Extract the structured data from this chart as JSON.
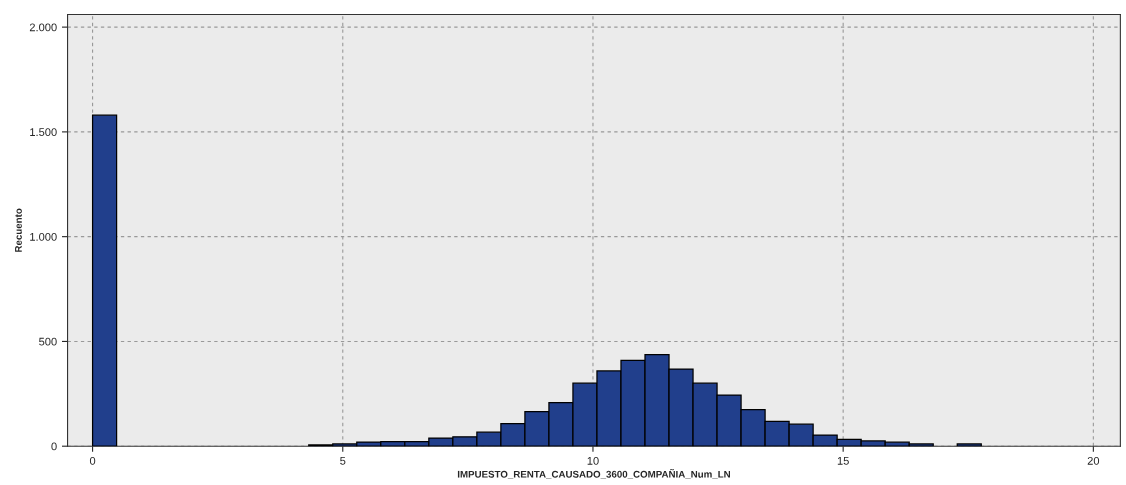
{
  "chart_data": {
    "type": "histogram",
    "xlabel": "IMPUESTO_RENTA_CAUSADO_3600_COMPAÑIA_Num_LN",
    "ylabel": "Recuento",
    "bins": [
      0,
      0.48,
      0.96,
      1.44,
      1.92,
      2.4,
      2.88,
      3.36,
      3.84,
      4.32,
      4.8,
      5.28,
      5.76,
      6.24,
      6.72,
      7.2,
      7.68,
      8.16,
      8.64,
      9.12,
      9.6,
      10.08,
      10.56,
      11.04,
      11.52,
      12.0,
      12.48,
      12.96,
      13.44,
      13.92,
      14.4,
      14.88,
      15.36,
      15.84,
      16.32,
      16.8,
      17.28,
      17.76
    ],
    "values": [
      1580,
      0,
      0,
      0,
      0,
      0,
      0,
      0,
      0,
      6,
      11,
      20,
      22,
      22,
      39,
      45,
      67,
      108,
      165,
      208,
      301,
      359,
      409,
      437,
      368,
      301,
      244,
      174,
      119,
      105,
      53,
      33,
      25,
      19,
      11,
      0,
      11
    ],
    "color": "#213f8c",
    "xlim": [
      -0.5,
      20.54
    ],
    "xticks": [
      0,
      5,
      10,
      15,
      20
    ],
    "ylim": [
      0,
      2060
    ],
    "yticks": [
      0,
      500,
      {
        "value": 1000,
        "label": "1.000"
      },
      {
        "value": 1500,
        "label": "1.500"
      },
      {
        "value": 2000,
        "label": "2.000"
      }
    ],
    "grid": true
  }
}
